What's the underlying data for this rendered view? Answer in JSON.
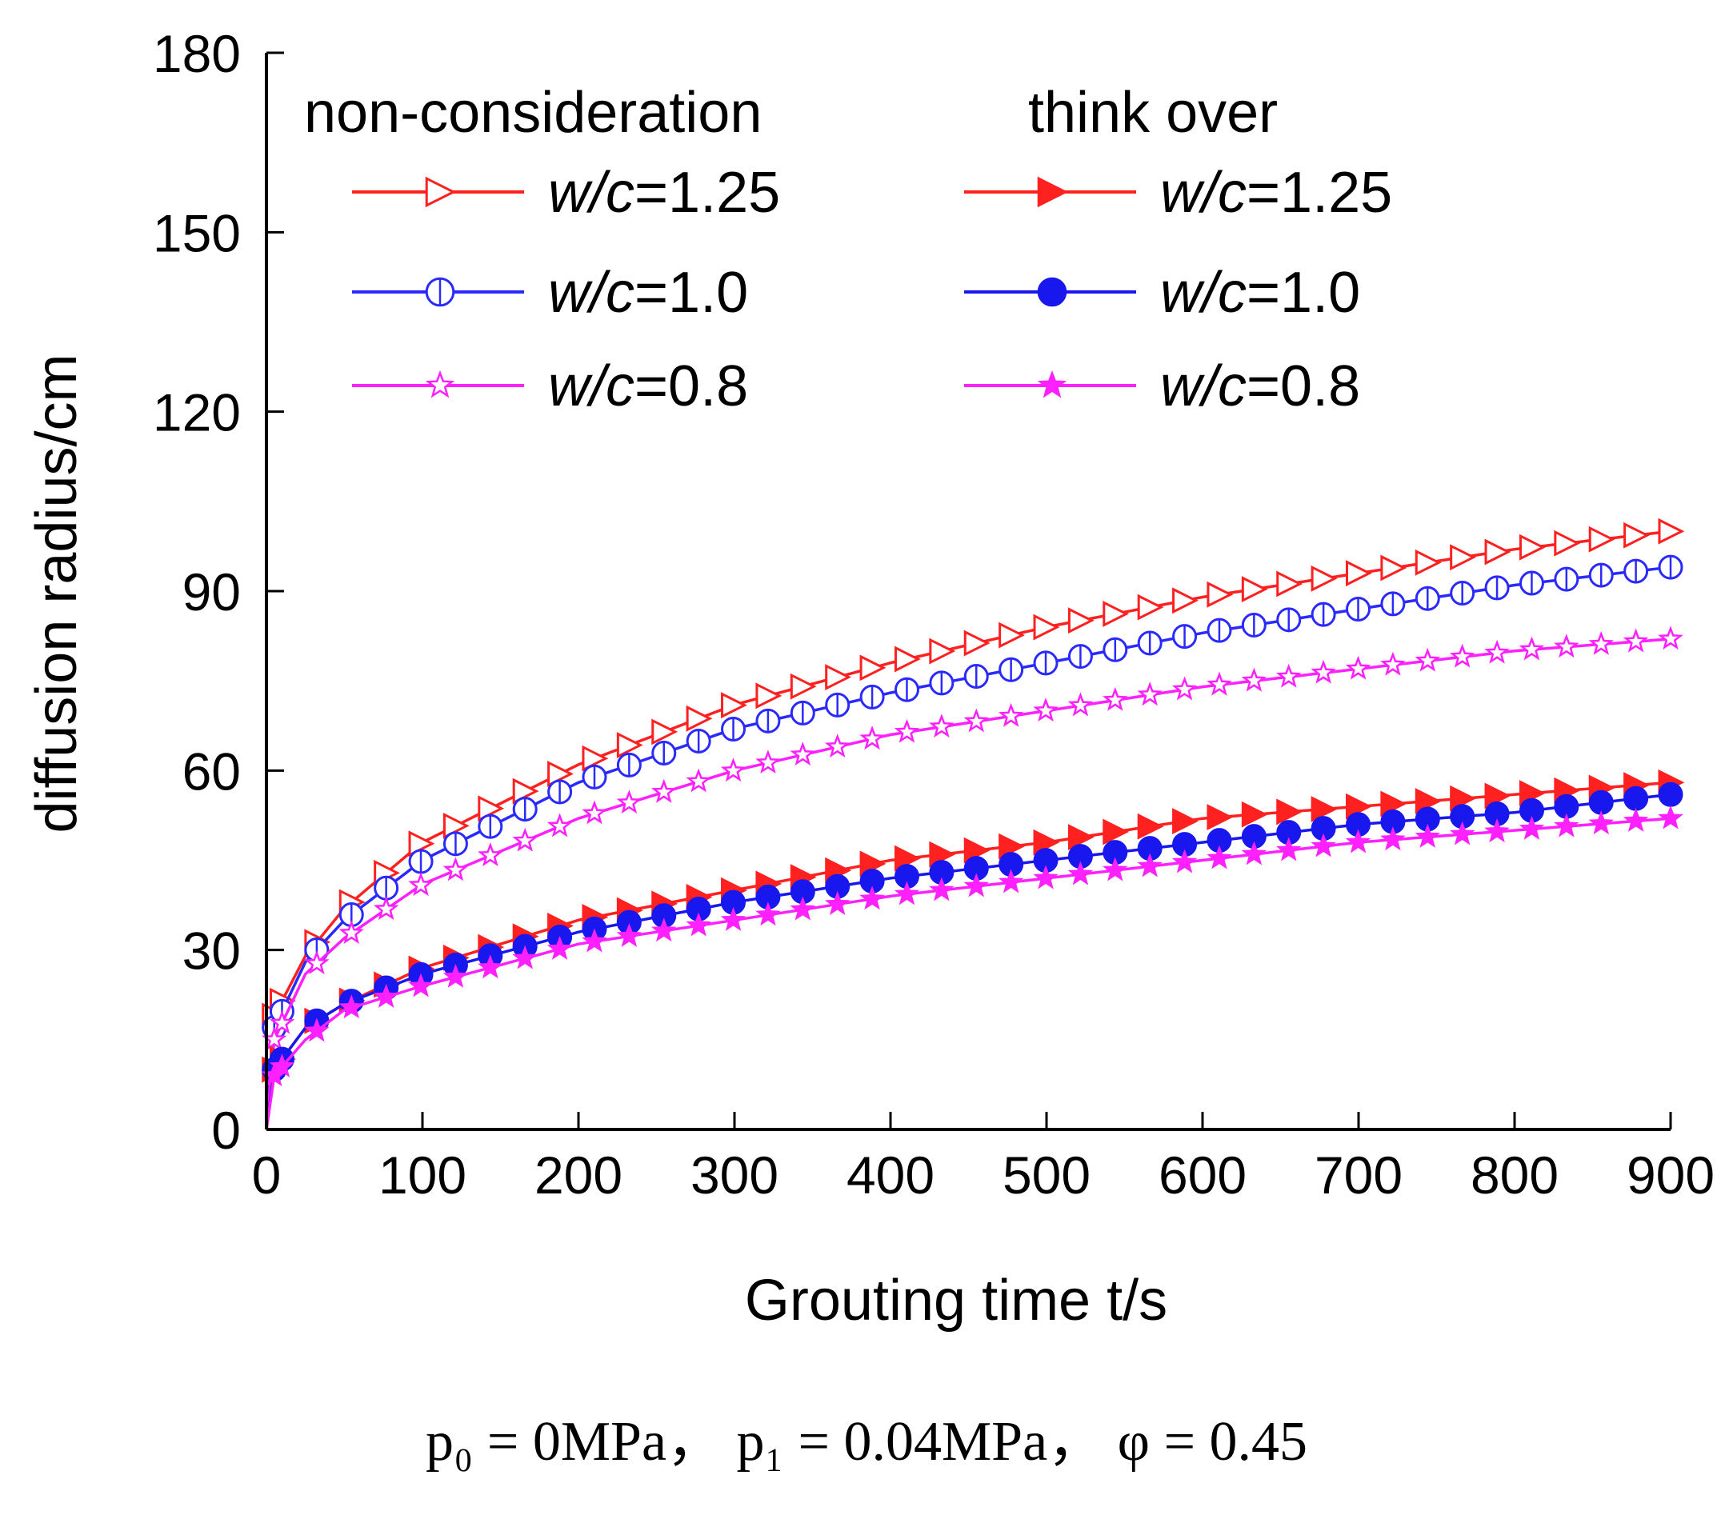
{
  "chart_data": {
    "type": "line",
    "xlabel": "Grouting time t/s",
    "ylabel": "diffusion radius/cm",
    "xlim": [
      0,
      900
    ],
    "ylim": [
      0,
      180
    ],
    "xticks": [
      0,
      100,
      200,
      300,
      400,
      500,
      600,
      700,
      800,
      900
    ],
    "yticks": [
      0,
      30,
      60,
      90,
      120,
      150,
      180
    ],
    "legend_groups": [
      "non-consideration",
      "think over"
    ],
    "legend_location": "top",
    "series": [
      {
        "name": "w/c=1.25",
        "group": "non-consideration",
        "prefix": "w/",
        "italic": "c",
        "suffix": "=1.25",
        "color": "#ff2020",
        "marker": "triangle-right-open",
        "x": [
          0,
          5,
          25,
          50,
          100,
          200,
          300,
          400,
          500,
          600,
          700,
          800,
          900
        ],
        "y": [
          0,
          19,
          29,
          37,
          48,
          61,
          71,
          78,
          84,
          89,
          93,
          97,
          100
        ]
      },
      {
        "name": "w/c=1.0",
        "group": "non-consideration",
        "prefix": "w/",
        "italic": "c",
        "suffix": "=1.0",
        "color": "#2a2aff",
        "marker": "circle-open",
        "x": [
          0,
          5,
          25,
          50,
          100,
          200,
          300,
          400,
          500,
          600,
          700,
          800,
          900
        ],
        "y": [
          0,
          17,
          28,
          35,
          45,
          58,
          67,
          73,
          78,
          83,
          87,
          91,
          94
        ]
      },
      {
        "name": "w/c=0.8",
        "group": "non-consideration",
        "prefix": "w/",
        "italic": "c",
        "suffix": "=0.8",
        "color": "#ff20ff",
        "marker": "star-open",
        "x": [
          0,
          5,
          25,
          50,
          100,
          200,
          300,
          400,
          500,
          600,
          700,
          800,
          900
        ],
        "y": [
          0,
          15,
          26,
          32,
          41,
          52,
          60,
          66,
          70,
          74,
          77,
          80,
          82
        ]
      },
      {
        "name": "w/c=1.25",
        "group": "think over",
        "prefix": "w/",
        "italic": "c",
        "suffix": "=1.25",
        "color": "#ff2020",
        "marker": "triangle-right-filled",
        "x": [
          0,
          5,
          25,
          50,
          100,
          200,
          300,
          400,
          500,
          600,
          700,
          800,
          900
        ],
        "y": [
          0,
          10,
          17,
          21,
          27,
          35,
          40,
          45,
          48,
          52,
          54,
          56,
          58
        ]
      },
      {
        "name": "w/c=1.0",
        "group": "think over",
        "prefix": "w/",
        "italic": "c",
        "suffix": "=1.0",
        "color": "#1818ee",
        "marker": "circle-filled",
        "x": [
          0,
          5,
          25,
          50,
          100,
          200,
          300,
          400,
          500,
          600,
          700,
          800,
          900
        ],
        "y": [
          0,
          10,
          17,
          21,
          26,
          33,
          38,
          42,
          45,
          48,
          51,
          53,
          56
        ]
      },
      {
        "name": "w/c=0.8",
        "group": "think over",
        "prefix": "w/",
        "italic": "c",
        "suffix": "=0.8",
        "color": "#ff20ff",
        "marker": "star-filled",
        "x": [
          0,
          5,
          25,
          50,
          100,
          200,
          300,
          400,
          500,
          600,
          700,
          800,
          900
        ],
        "y": [
          0,
          9,
          15,
          20,
          24,
          31,
          35,
          39,
          42,
          45,
          48,
          50,
          52
        ]
      }
    ]
  },
  "caption": "p₀ = 0MPa， p₁ = 0.04MPa， φ = 0.45"
}
